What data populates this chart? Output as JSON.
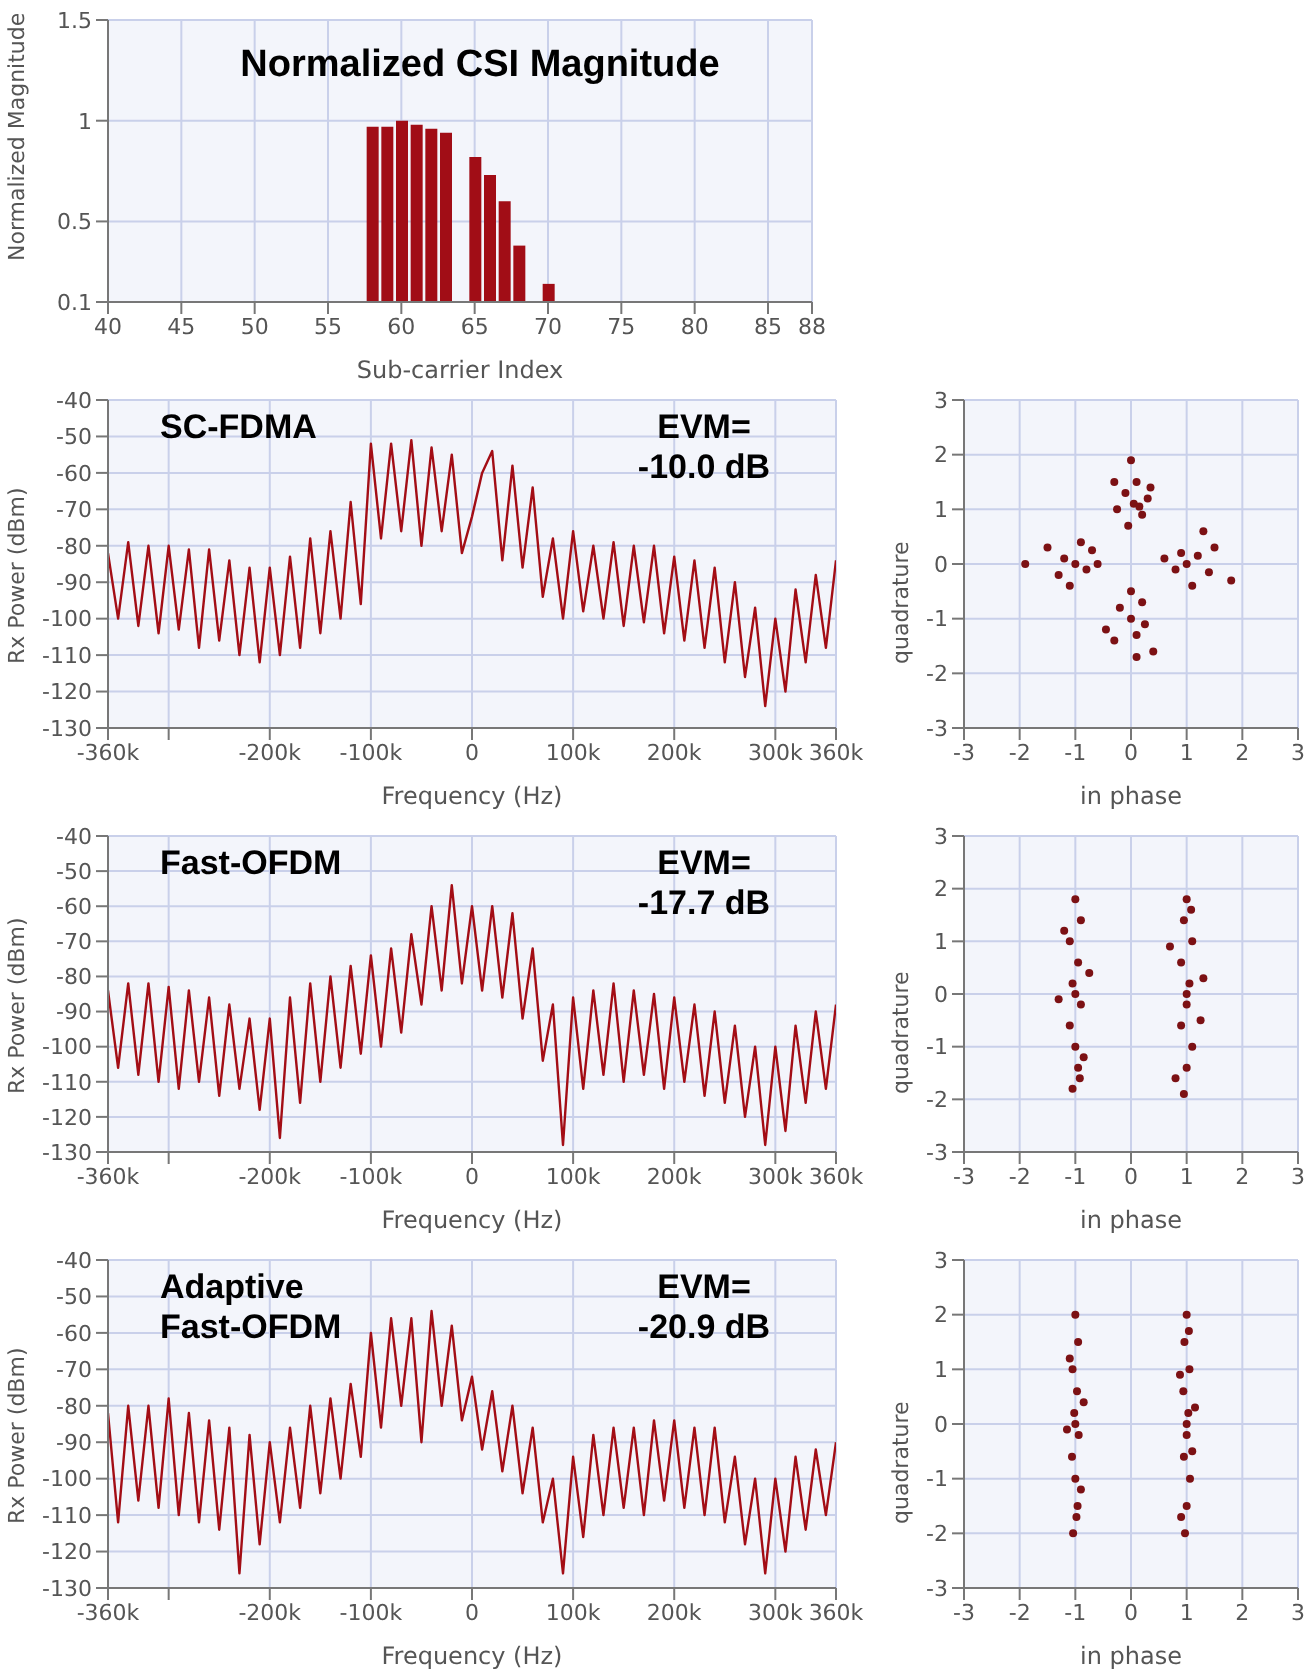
{
  "chart_data": [
    {
      "type": "bar",
      "title": "Normalized CSI Magnitude",
      "xlabel": "Sub-carrier Index",
      "ylabel": "Normalized Magnitude",
      "x": [
        58,
        59,
        60,
        61,
        62,
        63,
        65,
        66,
        67,
        68,
        70
      ],
      "values": [
        0.97,
        0.97,
        1.0,
        0.98,
        0.96,
        0.94,
        0.82,
        0.73,
        0.6,
        0.38,
        0.19
      ],
      "color": "#a10d16",
      "xlim": [
        40,
        88
      ],
      "xticks": [
        40,
        45,
        50,
        55,
        60,
        65,
        70,
        75,
        80,
        85,
        88
      ],
      "ylim": [
        0.1,
        1.5
      ],
      "yticks": [
        0.1,
        0.5,
        1,
        1.5
      ],
      "grid": true
    },
    {
      "type": "line",
      "xlabel": "Frequency (Hz)",
      "ylabel": "Rx Power (dBm)",
      "annotations": [
        "SC-FDMA",
        "EVM=\n-10.0 dB"
      ],
      "color": "#a30d15",
      "x": [
        -360000,
        -350000,
        -340000,
        -330000,
        -320000,
        -310000,
        -300000,
        -290000,
        -280000,
        -270000,
        -260000,
        -250000,
        -240000,
        -230000,
        -220000,
        -210000,
        -200000,
        -190000,
        -180000,
        -170000,
        -160000,
        -150000,
        -140000,
        -130000,
        -120000,
        -110000,
        -100000,
        -90000,
        -80000,
        -70000,
        -60000,
        -50000,
        -40000,
        -30000,
        -20000,
        -10000,
        0,
        10000,
        20000,
        30000,
        40000,
        50000,
        60000,
        70000,
        80000,
        90000,
        100000,
        110000,
        120000,
        130000,
        140000,
        150000,
        160000,
        170000,
        180000,
        190000,
        200000,
        210000,
        220000,
        230000,
        240000,
        250000,
        260000,
        270000,
        280000,
        290000,
        300000,
        310000,
        320000,
        330000,
        340000,
        350000,
        360000
      ],
      "values": [
        -82,
        -100,
        -79,
        -102,
        -80,
        -104,
        -80,
        -103,
        -81,
        -108,
        -81,
        -106,
        -84,
        -110,
        -86,
        -112,
        -86,
        -110,
        -83,
        -108,
        -78,
        -104,
        -76,
        -100,
        -68,
        -96,
        -52,
        -78,
        -52,
        -76,
        -51,
        -80,
        -53,
        -76,
        -55,
        -82,
        -72,
        -60,
        -54,
        -84,
        -58,
        -86,
        -64,
        -94,
        -78,
        -100,
        -76,
        -98,
        -80,
        -100,
        -79,
        -102,
        -80,
        -101,
        -80,
        -104,
        -83,
        -106,
        -84,
        -108,
        -86,
        -112,
        -90,
        -116,
        -97,
        -124,
        -100,
        -120,
        -92,
        -112,
        -88,
        -108,
        -84
      ],
      "xlim": [
        -360000,
        360000
      ],
      "xticks": [
        {
          "value": -360000,
          "label": "-360k"
        },
        {
          "value": -300000,
          "label": null
        },
        {
          "value": -200000,
          "label": "-200k"
        },
        {
          "value": -100000,
          "label": "-100k"
        },
        0,
        {
          "value": 100000,
          "label": "100k"
        },
        {
          "value": 200000,
          "label": "200k"
        },
        {
          "value": 300000,
          "label": "300k"
        },
        {
          "value": 360000,
          "label": "360k"
        }
      ],
      "ylim": [
        -130,
        -40
      ],
      "yticks": [
        -130,
        -120,
        -110,
        -100,
        -90,
        -80,
        -70,
        -60,
        -50,
        -40
      ],
      "grid": true
    },
    {
      "type": "scatter",
      "xlabel": "in phase",
      "ylabel": "quadrature",
      "marker": "circle",
      "color": "#7c1114",
      "x": [
        0.05,
        -0.1,
        0.2,
        -0.25,
        0.1,
        0.3,
        -0.05,
        0.0,
        0.35,
        -0.3,
        0.15,
        -1.0,
        -1.2,
        -0.8,
        -1.5,
        -0.6,
        -1.9,
        -1.1,
        -0.9,
        -1.3,
        -0.7,
        1.0,
        1.2,
        0.8,
        1.5,
        1.8,
        0.6,
        1.1,
        1.3,
        0.9,
        1.4,
        0.0,
        0.1,
        -0.2,
        0.25,
        -0.3,
        0.0,
        0.1,
        0.4,
        -0.45,
        0.2
      ],
      "values": [
        1.1,
        1.3,
        0.9,
        1.0,
        1.5,
        1.2,
        0.7,
        1.9,
        1.4,
        1.5,
        1.05,
        0.0,
        0.1,
        -0.1,
        0.3,
        0.0,
        0.0,
        -0.4,
        0.4,
        -0.2,
        0.25,
        0.0,
        0.15,
        -0.1,
        0.3,
        -0.3,
        0.1,
        -0.4,
        0.6,
        0.2,
        -0.15,
        -1.0,
        -1.3,
        -0.8,
        -1.1,
        -1.4,
        -0.5,
        -1.7,
        -1.6,
        -1.2,
        -0.7
      ],
      "xlim": [
        -3,
        3
      ],
      "xticks": [
        -3,
        -2,
        -1,
        0,
        1,
        2,
        3
      ],
      "ylim": [
        -3,
        3
      ],
      "yticks": [
        -3,
        -2,
        -1,
        0,
        1,
        2,
        3
      ],
      "grid": true
    },
    {
      "type": "line",
      "xlabel": "Frequency (Hz)",
      "ylabel": "Rx Power (dBm)",
      "annotations": [
        "Fast-OFDM",
        "EVM=\n-17.7 dB"
      ],
      "color": "#a30d15",
      "x": [
        -360000,
        -350000,
        -340000,
        -330000,
        -320000,
        -310000,
        -300000,
        -290000,
        -280000,
        -270000,
        -260000,
        -250000,
        -240000,
        -230000,
        -220000,
        -210000,
        -200000,
        -190000,
        -180000,
        -170000,
        -160000,
        -150000,
        -140000,
        -130000,
        -120000,
        -110000,
        -100000,
        -90000,
        -80000,
        -70000,
        -60000,
        -50000,
        -40000,
        -30000,
        -20000,
        -10000,
        0,
        10000,
        20000,
        30000,
        40000,
        50000,
        60000,
        70000,
        80000,
        90000,
        100000,
        110000,
        120000,
        130000,
        140000,
        150000,
        160000,
        170000,
        180000,
        190000,
        200000,
        210000,
        220000,
        230000,
        240000,
        250000,
        260000,
        270000,
        280000,
        290000,
        300000,
        310000,
        320000,
        330000,
        340000,
        350000,
        360000
      ],
      "values": [
        -84,
        -106,
        -82,
        -108,
        -82,
        -110,
        -83,
        -112,
        -84,
        -110,
        -86,
        -114,
        -88,
        -112,
        -92,
        -118,
        -92,
        -126,
        -86,
        -116,
        -82,
        -110,
        -80,
        -106,
        -77,
        -102,
        -74,
        -100,
        -72,
        -96,
        -68,
        -88,
        -60,
        -84,
        -54,
        -82,
        -60,
        -84,
        -60,
        -86,
        -62,
        -92,
        -72,
        -104,
        -88,
        -128,
        -86,
        -112,
        -84,
        -108,
        -82,
        -110,
        -84,
        -108,
        -85,
        -112,
        -86,
        -110,
        -88,
        -114,
        -90,
        -116,
        -94,
        -120,
        -100,
        -128,
        -100,
        -124,
        -94,
        -116,
        -90,
        -112,
        -88
      ],
      "xlim": [
        -360000,
        360000
      ],
      "xticks": [
        {
          "value": -360000,
          "label": "-360k"
        },
        {
          "value": -300000,
          "label": null
        },
        {
          "value": -200000,
          "label": "-200k"
        },
        {
          "value": -100000,
          "label": "-100k"
        },
        0,
        {
          "value": 100000,
          "label": "100k"
        },
        {
          "value": 200000,
          "label": "200k"
        },
        {
          "value": 300000,
          "label": "300k"
        },
        {
          "value": 360000,
          "label": "360k"
        }
      ],
      "ylim": [
        -130,
        -40
      ],
      "yticks": [
        -130,
        -120,
        -110,
        -100,
        -90,
        -80,
        -70,
        -60,
        -50,
        -40
      ],
      "grid": true
    },
    {
      "type": "scatter",
      "xlabel": "in phase",
      "ylabel": "quadrature",
      "marker": "circle",
      "color": "#7c1114",
      "x": [
        -1.0,
        -0.9,
        -1.1,
        -0.95,
        -1.05,
        -0.9,
        -1.1,
        -1.0,
        -0.95,
        -1.05,
        -1.3,
        -0.75,
        -1.2,
        -0.85,
        -1.0,
        -0.92,
        1.0,
        0.95,
        1.1,
        0.9,
        1.05,
        1.0,
        0.9,
        1.1,
        1.0,
        0.95,
        0.7,
        1.3,
        1.25,
        0.8,
        1.0,
        1.08
      ],
      "values": [
        1.8,
        1.4,
        1.0,
        0.6,
        0.2,
        -0.2,
        -0.6,
        -1.0,
        -1.4,
        -1.8,
        -0.1,
        0.4,
        1.2,
        -1.2,
        0.0,
        -1.6,
        1.8,
        1.4,
        1.0,
        0.6,
        0.2,
        -0.2,
        -0.6,
        -1.0,
        -1.4,
        -1.9,
        0.9,
        0.3,
        -0.5,
        -1.6,
        0.0,
        1.6
      ],
      "xlim": [
        -3,
        3
      ],
      "xticks": [
        -3,
        -2,
        -1,
        0,
        1,
        2,
        3
      ],
      "ylim": [
        -3,
        3
      ],
      "yticks": [
        -3,
        -2,
        -1,
        0,
        1,
        2,
        3
      ],
      "grid": true
    },
    {
      "type": "line",
      "xlabel": "Frequency (Hz)",
      "ylabel": "Rx Power (dBm)",
      "annotations": [
        "Adaptive\nFast-OFDM",
        "EVM=\n-20.9 dB"
      ],
      "color": "#a30d15",
      "x": [
        -360000,
        -350000,
        -340000,
        -330000,
        -320000,
        -310000,
        -300000,
        -290000,
        -280000,
        -270000,
        -260000,
        -250000,
        -240000,
        -230000,
        -220000,
        -210000,
        -200000,
        -190000,
        -180000,
        -170000,
        -160000,
        -150000,
        -140000,
        -130000,
        -120000,
        -110000,
        -100000,
        -90000,
        -80000,
        -70000,
        -60000,
        -50000,
        -40000,
        -30000,
        -20000,
        -10000,
        0,
        10000,
        20000,
        30000,
        40000,
        50000,
        60000,
        70000,
        80000,
        90000,
        100000,
        110000,
        120000,
        130000,
        140000,
        150000,
        160000,
        170000,
        180000,
        190000,
        200000,
        210000,
        220000,
        230000,
        240000,
        250000,
        260000,
        270000,
        280000,
        290000,
        300000,
        310000,
        320000,
        330000,
        340000,
        350000,
        360000
      ],
      "values": [
        -82,
        -112,
        -80,
        -106,
        -80,
        -108,
        -78,
        -110,
        -82,
        -112,
        -84,
        -114,
        -86,
        -126,
        -88,
        -118,
        -90,
        -112,
        -86,
        -108,
        -80,
        -104,
        -78,
        -100,
        -74,
        -94,
        -60,
        -86,
        -56,
        -80,
        -56,
        -90,
        -54,
        -80,
        -58,
        -84,
        -72,
        -92,
        -76,
        -98,
        -80,
        -104,
        -86,
        -112,
        -100,
        -126,
        -94,
        -116,
        -88,
        -110,
        -86,
        -108,
        -86,
        -110,
        -84,
        -106,
        -84,
        -108,
        -86,
        -110,
        -86,
        -112,
        -94,
        -118,
        -100,
        -126,
        -100,
        -120,
        -94,
        -114,
        -92,
        -110,
        -90
      ],
      "xlim": [
        -360000,
        360000
      ],
      "xticks": [
        {
          "value": -360000,
          "label": "-360k"
        },
        {
          "value": -300000,
          "label": null
        },
        {
          "value": -200000,
          "label": "-200k"
        },
        {
          "value": -100000,
          "label": "-100k"
        },
        0,
        {
          "value": 100000,
          "label": "100k"
        },
        {
          "value": 200000,
          "label": "200k"
        },
        {
          "value": 300000,
          "label": "300k"
        },
        {
          "value": 360000,
          "label": "360k"
        }
      ],
      "ylim": [
        -130,
        -40
      ],
      "yticks": [
        -130,
        -120,
        -110,
        -100,
        -90,
        -80,
        -70,
        -60,
        -50,
        -40
      ],
      "grid": true
    },
    {
      "type": "scatter",
      "xlabel": "in phase",
      "ylabel": "quadrature",
      "marker": "circle",
      "color": "#7c1114",
      "x": [
        -1.0,
        -0.95,
        -1.05,
        -0.97,
        -1.02,
        -0.94,
        -1.06,
        -1.0,
        -0.96,
        -1.04,
        -1.15,
        -0.85,
        -1.1,
        -0.9,
        -1.0,
        -0.98,
        1.0,
        0.96,
        1.05,
        0.94,
        1.03,
        1.0,
        0.95,
        1.06,
        1.0,
        0.97,
        0.88,
        1.15,
        1.1,
        0.9,
        1.0,
        1.04
      ],
      "values": [
        2.0,
        1.5,
        1.0,
        0.6,
        0.2,
        -0.2,
        -0.6,
        -1.0,
        -1.5,
        -2.0,
        -0.1,
        0.4,
        1.2,
        -1.2,
        0.0,
        -1.7,
        2.0,
        1.5,
        1.0,
        0.6,
        0.2,
        -0.2,
        -0.6,
        -1.0,
        -1.5,
        -2.0,
        0.9,
        0.3,
        -0.5,
        -1.7,
        0.0,
        1.7
      ],
      "xlim": [
        -3,
        3
      ],
      "xticks": [
        -3,
        -2,
        -1,
        0,
        1,
        2,
        3
      ],
      "ylim": [
        -3,
        3
      ],
      "yticks": [
        -3,
        -2,
        -1,
        0,
        1,
        2,
        3
      ],
      "grid": true
    }
  ]
}
